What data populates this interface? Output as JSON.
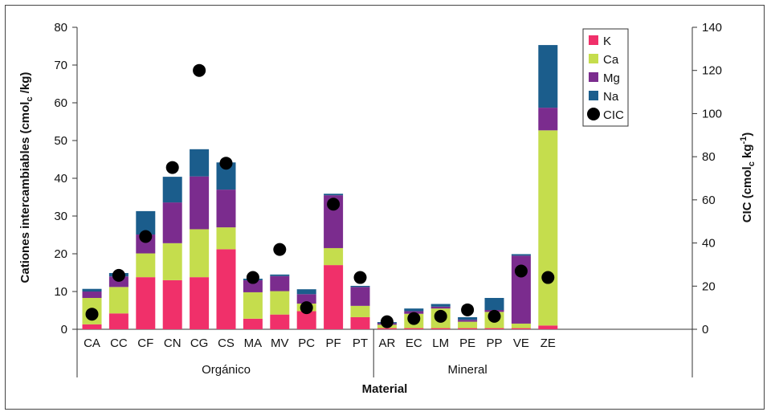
{
  "chart_data": {
    "type": "bar",
    "stacked": true,
    "categories": [
      "CA",
      "CC",
      "CF",
      "CN",
      "CG",
      "CS",
      "MA",
      "MV",
      "PC",
      "PF",
      "PT",
      "AR",
      "EC",
      "LM",
      "PE",
      "PP",
      "VE",
      "ZE"
    ],
    "groups": [
      {
        "label": "Orgánico",
        "categories": [
          "CA",
          "CC",
          "CF",
          "CN",
          "CG",
          "CS",
          "MA",
          "MV",
          "PC",
          "PF",
          "PT"
        ]
      },
      {
        "label": "Mineral",
        "categories": [
          "AR",
          "EC",
          "LM",
          "PE",
          "PP",
          "VE",
          "ZE"
        ]
      }
    ],
    "series": [
      {
        "name": "K",
        "color": "#f0306a",
        "values": [
          1.3,
          4.2,
          13.8,
          13.0,
          13.8,
          21.2,
          2.8,
          3.9,
          4.8,
          17.0,
          3.2,
          0.3,
          0.3,
          0.3,
          0.3,
          0.3,
          0.3,
          1.0
        ]
      },
      {
        "name": "Ca",
        "color": "#c5dd4d",
        "values": [
          7.0,
          7.0,
          6.3,
          9.8,
          12.7,
          5.8,
          7.0,
          6.2,
          2.0,
          4.5,
          3.0,
          0.9,
          3.8,
          5.2,
          1.7,
          4.3,
          1.2,
          51.7
        ]
      },
      {
        "name": "Mg",
        "color": "#7b2c8e",
        "values": [
          1.7,
          2.8,
          5.0,
          10.8,
          14.0,
          10.0,
          3.2,
          4.0,
          2.5,
          14.0,
          5.0,
          0.4,
          0.7,
          0.5,
          0.5,
          0.5,
          18.0,
          6.0
        ]
      },
      {
        "name": "Na",
        "color": "#1b5d8c",
        "values": [
          0.7,
          0.9,
          6.2,
          6.8,
          7.2,
          7.2,
          0.4,
          0.4,
          1.3,
          0.4,
          0.3,
          0.3,
          0.7,
          0.7,
          0.7,
          3.2,
          0.4,
          16.6
        ]
      }
    ],
    "markers": {
      "name": "CIC",
      "color": "#000000",
      "values": [
        7,
        25,
        43,
        75,
        120,
        77,
        24,
        37,
        10,
        58,
        24,
        3.5,
        5,
        6,
        9,
        6,
        27,
        24
      ]
    },
    "ylim": [
      0,
      80
    ],
    "yticks": [
      0,
      10,
      20,
      30,
      40,
      50,
      60,
      70,
      80
    ],
    "y2lim": [
      0,
      140
    ],
    "y2ticks": [
      0,
      20,
      40,
      60,
      80,
      100,
      120,
      140
    ],
    "ylabel_main": "Cationes intercambiables (cmol",
    "ylabel_sub": "c",
    "ylabel_end": " /kg)",
    "y2label_main": "CIC (cmol",
    "y2label_sub": "c",
    "y2label_mid": " kg",
    "y2label_sup": "-1",
    "y2label_end": ")",
    "xlabel": "Material",
    "legend": {
      "placement": "top-right",
      "entries": [
        "K",
        "Ca",
        "Mg",
        "Na",
        "CIC"
      ]
    },
    "grid": false
  }
}
